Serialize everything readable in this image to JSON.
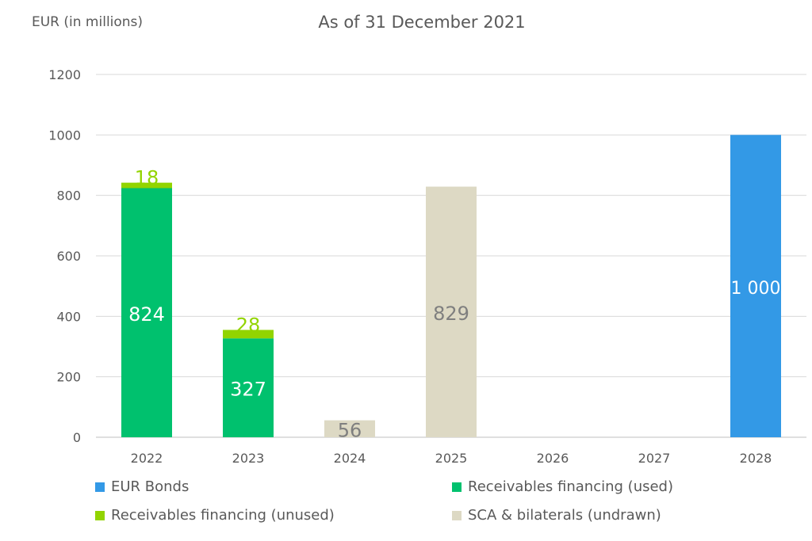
{
  "header": {
    "unit_label": "EUR (in millions)",
    "title": "As of 31 December 2021"
  },
  "chart_data": {
    "type": "bar",
    "stacked": true,
    "title": "As of 31 December 2021",
    "ylabel": "EUR (in millions)",
    "xlabel": "",
    "categories": [
      "2022",
      "2023",
      "2024",
      "2025",
      "2026",
      "2027",
      "2028"
    ],
    "ylim": [
      0,
      1200
    ],
    "yticks": [
      0,
      200,
      400,
      600,
      800,
      1000,
      1200
    ],
    "grid": true,
    "legend_position": "bottom",
    "series": [
      {
        "name": "Receivables financing (used)",
        "color": "#00c16e",
        "label_color": "#ffffff",
        "values": [
          824,
          327,
          0,
          0,
          0,
          0,
          0
        ],
        "labels": [
          "824",
          "327",
          "",
          "",
          "",
          "",
          ""
        ]
      },
      {
        "name": "Receivables financing (unused)",
        "color": "#92d400",
        "label_color": "#92d400",
        "values": [
          18,
          28,
          0,
          0,
          0,
          0,
          0
        ],
        "labels": [
          "18",
          "28",
          "",
          "",
          "",
          "",
          ""
        ]
      },
      {
        "name": "SCA & bilaterals (undrawn)",
        "color": "#ddd9c4",
        "label_color": "#7f7f7f",
        "values": [
          0,
          0,
          56,
          829,
          0,
          0,
          0
        ],
        "labels": [
          "",
          "",
          "56",
          "829",
          "",
          "",
          ""
        ]
      },
      {
        "name": "EUR Bonds",
        "color": "#3399e6",
        "label_color": "#ffffff",
        "values": [
          0,
          0,
          0,
          0,
          0,
          0,
          1000
        ],
        "labels": [
          "",
          "",
          "",
          "",
          "",
          "",
          "1 000"
        ]
      }
    ]
  },
  "legend": [
    {
      "name": "EUR Bonds",
      "color": "#3399e6"
    },
    {
      "name": "Receivables financing (used)",
      "color": "#00c16e"
    },
    {
      "name": "Receivables financing (unused)",
      "color": "#92d400"
    },
    {
      "name": "SCA & bilaterals (undrawn)",
      "color": "#ddd9c4"
    }
  ]
}
